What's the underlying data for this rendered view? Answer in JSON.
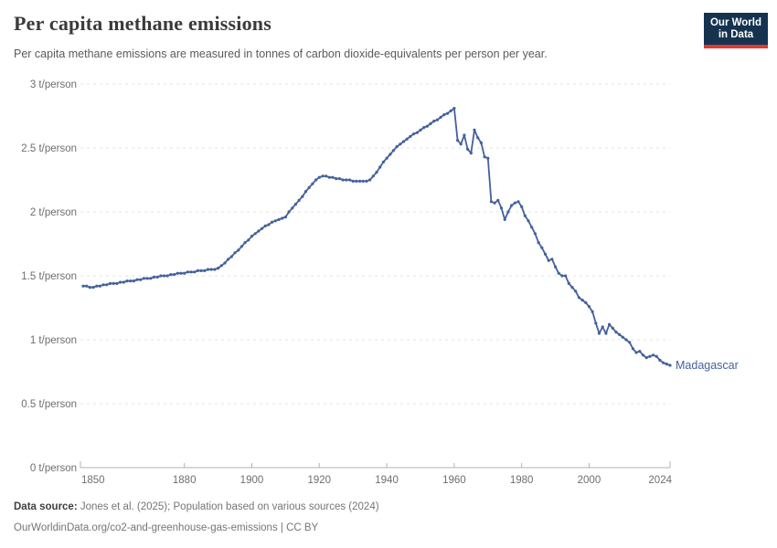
{
  "header": {
    "title": "Per capita methane emissions",
    "subtitle": "Per capita methane emissions are measured in tonnes of carbon dioxide-equivalents per person per year.",
    "logo": {
      "line1": "Our World",
      "line2": "in Data",
      "bg_color": "#15334f",
      "accent_color": "#dc3a32"
    }
  },
  "chart_data": {
    "type": "line",
    "title": "Per capita methane emissions",
    "subtitle": "Per capita methane emissions are measured in tonnes of carbon dioxide-equivalents per person per year.",
    "entity_label": "Madagascar",
    "unit": "t/person",
    "line_color": "#44619b",
    "grid": "horizontal-dashed",
    "legend_position": "end-of-line-label",
    "xlabel": "",
    "ylabel": "",
    "x_range": [
      1850,
      2024
    ],
    "ylim": [
      0,
      3
    ],
    "x_ticks": [
      1850,
      1880,
      1900,
      1920,
      1940,
      1960,
      1980,
      2000,
      2024
    ],
    "y_ticks": [
      {
        "v": 0,
        "label": "0 t/person"
      },
      {
        "v": 0.5,
        "label": "0.5 t/person"
      },
      {
        "v": 1,
        "label": "1 t/person"
      },
      {
        "v": 1.5,
        "label": "1.5 t/person"
      },
      {
        "v": 2,
        "label": "2 t/person"
      },
      {
        "v": 2.5,
        "label": "2.5 t/person"
      },
      {
        "v": 3,
        "label": "3 t/person"
      }
    ],
    "series": [
      {
        "name": "Madagascar",
        "start_year": 1850,
        "end_year": 2024,
        "values": [
          1.42,
          1.42,
          1.41,
          1.41,
          1.42,
          1.42,
          1.43,
          1.43,
          1.44,
          1.44,
          1.44,
          1.45,
          1.45,
          1.46,
          1.46,
          1.46,
          1.47,
          1.47,
          1.48,
          1.48,
          1.48,
          1.49,
          1.49,
          1.5,
          1.5,
          1.5,
          1.51,
          1.51,
          1.52,
          1.52,
          1.52,
          1.53,
          1.53,
          1.53,
          1.54,
          1.54,
          1.54,
          1.55,
          1.55,
          1.55,
          1.56,
          1.58,
          1.6,
          1.63,
          1.65,
          1.68,
          1.7,
          1.73,
          1.76,
          1.78,
          1.81,
          1.83,
          1.85,
          1.87,
          1.89,
          1.9,
          1.92,
          1.93,
          1.94,
          1.95,
          1.96,
          2.0,
          2.03,
          2.06,
          2.09,
          2.12,
          2.16,
          2.19,
          2.22,
          2.25,
          2.27,
          2.28,
          2.28,
          2.27,
          2.27,
          2.26,
          2.26,
          2.25,
          2.25,
          2.25,
          2.24,
          2.24,
          2.24,
          2.24,
          2.24,
          2.25,
          2.28,
          2.31,
          2.35,
          2.39,
          2.42,
          2.45,
          2.48,
          2.51,
          2.53,
          2.55,
          2.57,
          2.59,
          2.61,
          2.62,
          2.64,
          2.66,
          2.67,
          2.69,
          2.71,
          2.72,
          2.74,
          2.76,
          2.77,
          2.79,
          2.81,
          2.56,
          2.53,
          2.6,
          2.49,
          2.46,
          2.64,
          2.58,
          2.54,
          2.43,
          2.42,
          2.08,
          2.07,
          2.09,
          2.03,
          1.94,
          2.0,
          2.05,
          2.07,
          2.08,
          2.04,
          1.97,
          1.93,
          1.88,
          1.83,
          1.76,
          1.72,
          1.67,
          1.62,
          1.63,
          1.57,
          1.52,
          1.5,
          1.5,
          1.44,
          1.41,
          1.38,
          1.33,
          1.31,
          1.29,
          1.26,
          1.22,
          1.13,
          1.05,
          1.1,
          1.05,
          1.12,
          1.09,
          1.06,
          1.04,
          1.02,
          1.0,
          0.98,
          0.93,
          0.9,
          0.91,
          0.88,
          0.86,
          0.87,
          0.88,
          0.87,
          0.84,
          0.82,
          0.81,
          0.8
        ]
      }
    ]
  },
  "footer": {
    "source_label": "Data source:",
    "source_text": "Jones et al. (2025); Population based on various sources (2024)",
    "url_line": "OurWorldinData.org/co2-and-greenhouse-gas-emissions | CC BY"
  }
}
